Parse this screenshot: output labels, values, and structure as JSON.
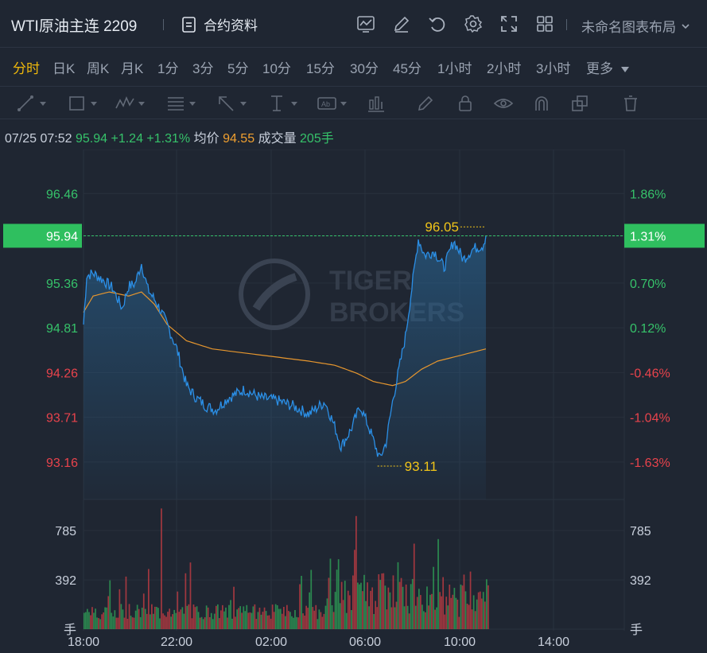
{
  "header": {
    "title": "WTI原油主连 2209",
    "contract_info": "合约资料",
    "layout_name": "未命名图表布局",
    "icons": [
      "indicator-icon",
      "edit-icon",
      "undo-icon",
      "settings-icon",
      "fullscreen-icon",
      "grid-layout-icon"
    ]
  },
  "periods": {
    "items": [
      "分时",
      "日K",
      "周K",
      "月K",
      "1分",
      "3分",
      "5分",
      "10分",
      "15分",
      "30分",
      "45分",
      "1小时",
      "2小时",
      "3小时",
      "更多"
    ],
    "active": "分时"
  },
  "drawing_tools": [
    "line-tool-icon",
    "rectangle-tool-icon",
    "wave-tool-icon",
    "fib-tool-icon",
    "arrow-tool-icon",
    "text-cursor-tool-icon",
    "label-tool-icon",
    "measure-tool-icon",
    "brush-icon",
    "lock-icon",
    "eye-icon",
    "magnet-icon",
    "copy-icon",
    "trash-icon"
  ],
  "info": {
    "datetime": "07/25 07:52",
    "price": "95.94",
    "change": "+1.24",
    "change_pct": "+1.31%",
    "avg_label": "均价",
    "avg_value": "94.55",
    "volume_label": "成交量",
    "volume_value": "205手"
  },
  "colors": {
    "up": "#36c26a",
    "down": "#e8434c",
    "price_line": "#2b8fe6",
    "avg_line": "#e6962e",
    "highlight": "#f0c419",
    "background": "#1f2632"
  },
  "chart_data": {
    "type": "line",
    "price_axis_left": [
      "96.46",
      "95.94",
      "95.36",
      "94.81",
      "94.26",
      "93.71",
      "93.16"
    ],
    "price_axis_right": [
      "1.86%",
      "1.31%",
      "0.70%",
      "0.12%",
      "-0.46%",
      "-1.04%",
      "-1.63%"
    ],
    "current_price": "95.94",
    "current_pct": "1.31%",
    "high_label": "96.05",
    "low_label": "93.11",
    "volume_axis": [
      "785",
      "392"
    ],
    "volume_unit": "手",
    "x_ticks": [
      "18:00",
      "22:00",
      "02:00",
      "06:00",
      "10:00",
      "14:00"
    ],
    "ylim": [
      92.7,
      97.0
    ],
    "volume_max": 1000,
    "watermark": [
      "TIGER",
      "BROKERS"
    ],
    "price_keypoints": [
      [
        0,
        94.85
      ],
      [
        1,
        95.45
      ],
      [
        3,
        95.48
      ],
      [
        6,
        95.4
      ],
      [
        9,
        95.3
      ],
      [
        12,
        95.05
      ],
      [
        14,
        95.32
      ],
      [
        16,
        95.35
      ],
      [
        18,
        95.6
      ],
      [
        20,
        95.28
      ],
      [
        23,
        95.1
      ],
      [
        26,
        94.85
      ],
      [
        29,
        94.55
      ],
      [
        32,
        94.1
      ],
      [
        35,
        93.95
      ],
      [
        38,
        93.85
      ],
      [
        41,
        93.8
      ],
      [
        45,
        93.95
      ],
      [
        50,
        94.05
      ],
      [
        55,
        93.95
      ],
      [
        60,
        93.92
      ],
      [
        65,
        93.85
      ],
      [
        70,
        93.75
      ],
      [
        75,
        93.9
      ],
      [
        78,
        93.6
      ],
      [
        80,
        93.35
      ],
      [
        83,
        93.55
      ],
      [
        86,
        93.85
      ],
      [
        89,
        93.55
      ],
      [
        92,
        93.2
      ],
      [
        94,
        93.4
      ],
      [
        96,
        93.9
      ],
      [
        98,
        94.3
      ],
      [
        100,
        94.7
      ],
      [
        102,
        95.3
      ],
      [
        104,
        95.9
      ],
      [
        106,
        95.7
      ],
      [
        109,
        95.75
      ],
      [
        112,
        95.55
      ],
      [
        115,
        95.88
      ],
      [
        118,
        95.65
      ],
      [
        121,
        95.78
      ],
      [
        124,
        95.82
      ],
      [
        125,
        95.94
      ]
    ],
    "avg_keypoints": [
      [
        0,
        95.0
      ],
      [
        3,
        95.2
      ],
      [
        8,
        95.25
      ],
      [
        14,
        95.2
      ],
      [
        18,
        95.25
      ],
      [
        22,
        95.1
      ],
      [
        26,
        94.85
      ],
      [
        32,
        94.65
      ],
      [
        40,
        94.55
      ],
      [
        50,
        94.5
      ],
      [
        60,
        94.45
      ],
      [
        70,
        94.4
      ],
      [
        78,
        94.35
      ],
      [
        85,
        94.25
      ],
      [
        90,
        94.15
      ],
      [
        96,
        94.1
      ],
      [
        100,
        94.15
      ],
      [
        105,
        94.3
      ],
      [
        110,
        94.4
      ],
      [
        120,
        94.5
      ],
      [
        125,
        94.55
      ]
    ],
    "points": 126,
    "total_slots": 168
  }
}
